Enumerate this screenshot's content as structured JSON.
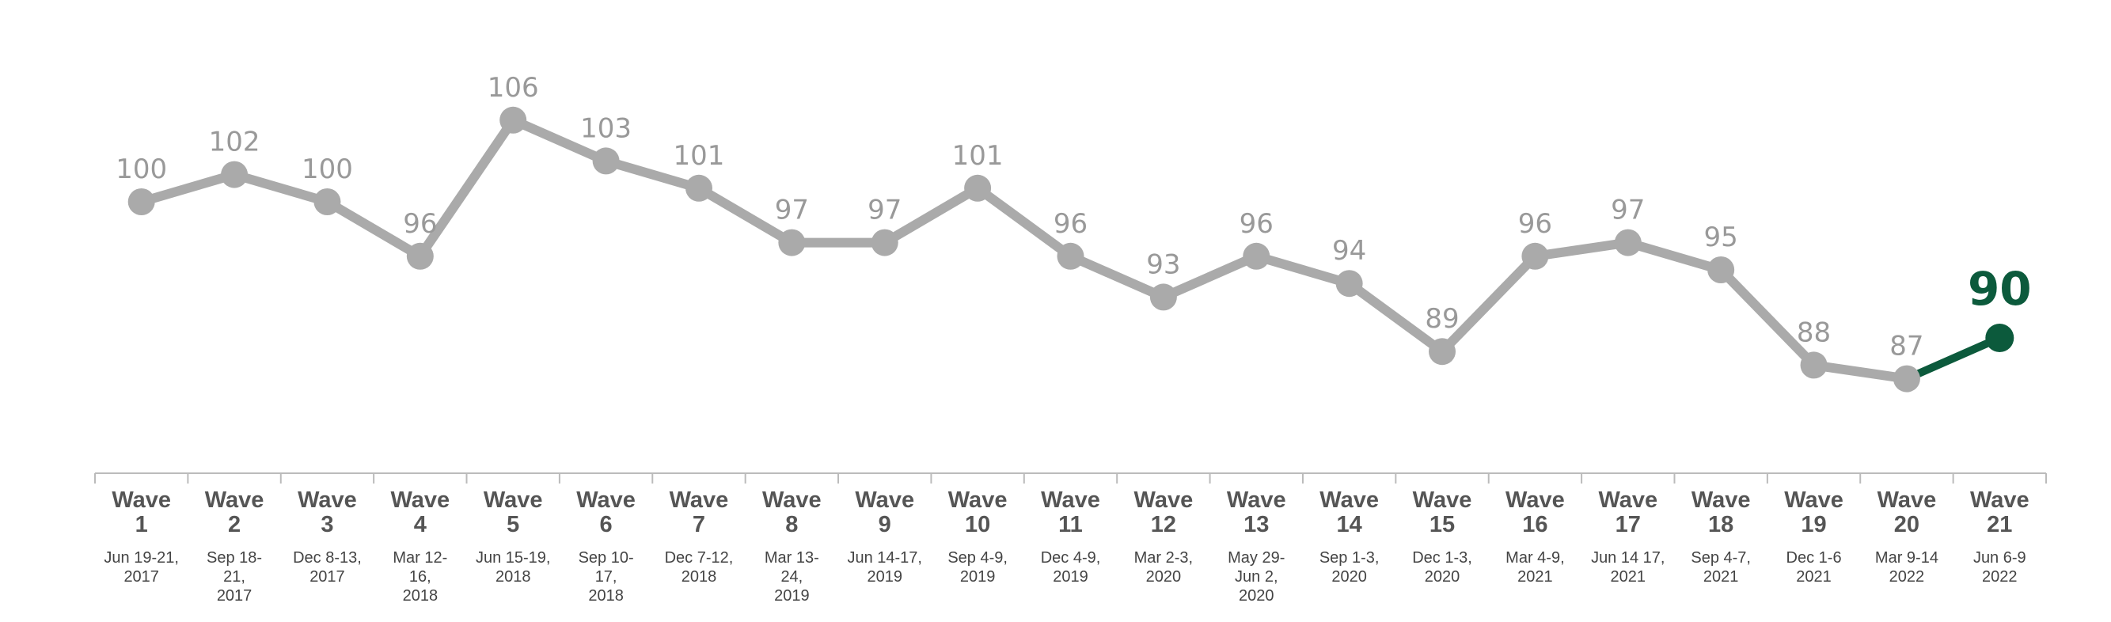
{
  "chart_data": {
    "type": "line",
    "categories": [
      {
        "wave": [
          "Wave",
          "1"
        ],
        "date": [
          "Jun 19-21,",
          "2017"
        ]
      },
      {
        "wave": [
          "Wave",
          "2"
        ],
        "date": [
          "Sep 18-",
          "21,",
          "2017"
        ]
      },
      {
        "wave": [
          "Wave",
          "3"
        ],
        "date": [
          "Dec 8-13,",
          "2017"
        ]
      },
      {
        "wave": [
          "Wave",
          "4"
        ],
        "date": [
          "Mar 12-",
          "16,",
          "2018"
        ]
      },
      {
        "wave": [
          "Wave",
          "5"
        ],
        "date": [
          "Jun 15-19,",
          "2018"
        ]
      },
      {
        "wave": [
          "Wave",
          "6"
        ],
        "date": [
          "Sep 10-",
          "17,",
          "2018"
        ]
      },
      {
        "wave": [
          "Wave",
          "7"
        ],
        "date": [
          "Dec 7-12,",
          "2018"
        ]
      },
      {
        "wave": [
          "Wave",
          "8"
        ],
        "date": [
          "Mar 13-",
          "24,",
          "2019"
        ]
      },
      {
        "wave": [
          "Wave",
          "9"
        ],
        "date": [
          "Jun 14-17,",
          "2019"
        ]
      },
      {
        "wave": [
          "Wave",
          "10"
        ],
        "date": [
          "Sep 4-9,",
          "2019"
        ]
      },
      {
        "wave": [
          "Wave",
          "11"
        ],
        "date": [
          "Dec 4-9,",
          "2019"
        ]
      },
      {
        "wave": [
          "Wave",
          "12"
        ],
        "date": [
          "Mar 2-3,",
          "2020"
        ]
      },
      {
        "wave": [
          "Wave",
          "13"
        ],
        "date": [
          "May 29-",
          "Jun 2,",
          "2020"
        ]
      },
      {
        "wave": [
          "Wave",
          "14"
        ],
        "date": [
          "Sep 1-3,",
          "2020"
        ]
      },
      {
        "wave": [
          "Wave",
          "15"
        ],
        "date": [
          "Dec 1-3,",
          "2020"
        ]
      },
      {
        "wave": [
          "Wave",
          "16"
        ],
        "date": [
          "Mar 4-9,",
          "2021"
        ]
      },
      {
        "wave": [
          "Wave",
          "17"
        ],
        "date": [
          "Jun 14 17,",
          "2021"
        ]
      },
      {
        "wave": [
          "Wave",
          "18"
        ],
        "date": [
          "Sep 4-7,",
          "2021"
        ]
      },
      {
        "wave": [
          "Wave",
          "19"
        ],
        "date": [
          "Dec 1-6",
          "2021"
        ]
      },
      {
        "wave": [
          "Wave",
          "20"
        ],
        "date": [
          "Mar 9-14",
          "2022"
        ]
      },
      {
        "wave": [
          "Wave",
          "21"
        ],
        "date": [
          "Jun 6-9",
          "2022"
        ]
      }
    ],
    "series": [
      {
        "values": [
          100,
          102,
          100,
          96,
          106,
          103,
          101,
          97,
          97,
          101,
          96,
          93,
          96,
          94,
          89,
          96,
          97,
          95,
          88,
          87,
          90
        ]
      }
    ],
    "highlight_index": 20,
    "ylim": [
      80,
      110
    ],
    "title": "",
    "xlabel": "",
    "ylabel": "",
    "grid": false,
    "legend": "none",
    "colors": {
      "line": "#aaaaaa",
      "highlight": "#0c5a3c",
      "label": "#999999",
      "axis": "#bbbbbb"
    }
  }
}
